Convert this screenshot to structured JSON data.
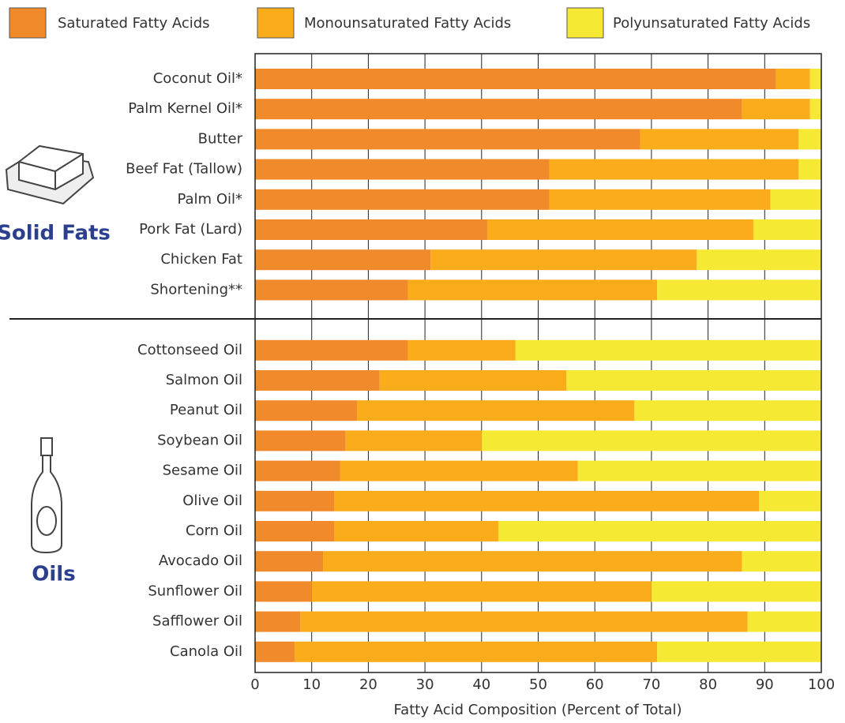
{
  "chart_data": {
    "type": "stacked-bar-horizontal",
    "x_label": "Fatty Acid Composition (Percent of Total)",
    "group_labels": [
      "Solid Fats",
      "Oils"
    ],
    "categories": [
      "Coconut Oil*",
      "Palm Kernel Oil*",
      "Butter",
      "Beef Fat (Tallow)",
      "Palm Oil*",
      "Pork Fat (Lard)",
      "Chicken Fat",
      "Shortening**",
      "Cottonseed Oil",
      "Salmon Oil",
      "Peanut Oil",
      "Soybean Oil",
      "Sesame Oil",
      "Olive Oil",
      "Corn Oil",
      "Avocado Oil",
      "Sunflower Oil",
      "Safflower Oil",
      "Canola Oil"
    ],
    "series": [
      {
        "name": "Saturated Fatty Acids",
        "color": "#f18a2b",
        "values": [
          92,
          86,
          68,
          52,
          52,
          41,
          31,
          27,
          27,
          22,
          18,
          16,
          15,
          14,
          14,
          12,
          10,
          8,
          7
        ]
      },
      {
        "name": "Monounsaturated Fatty Acids",
        "color": "#fbac1b",
        "values": [
          6,
          12,
          28,
          44,
          39,
          47,
          47,
          44,
          19,
          33,
          49,
          24,
          42,
          75,
          29,
          74,
          60,
          79,
          64
        ]
      },
      {
        "name": "Polyunsaturated Fatty Acids",
        "color": "#f6e934",
        "values": [
          2,
          2,
          4,
          4,
          9,
          12,
          22,
          29,
          54,
          45,
          33,
          60,
          43,
          11,
          57,
          14,
          30,
          13,
          29
        ]
      }
    ],
    "xlim": [
      0,
      100
    ],
    "xticks": [
      0,
      10,
      20,
      30,
      40,
      50,
      60,
      70,
      80,
      90,
      100
    ],
    "grid": true
  }
}
